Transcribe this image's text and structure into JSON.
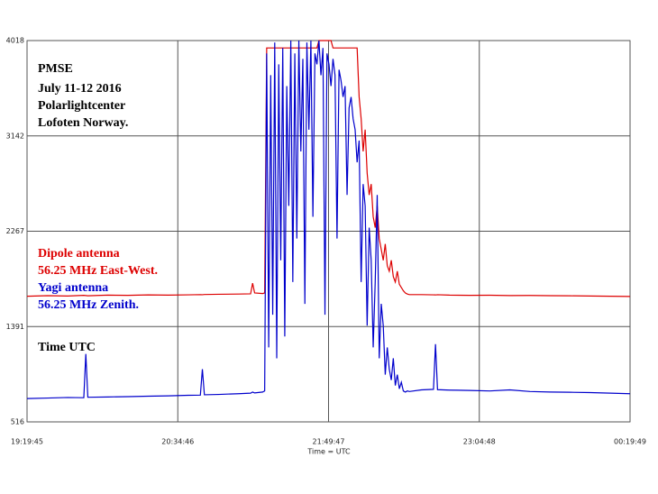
{
  "chart_data": {
    "type": "line",
    "title": "PMSE",
    "annotations": [
      "July 11-12 2016",
      "Polarlightcenter",
      "Lofoten Norway.",
      "Time UTC"
    ],
    "xlabel": "Time = UTC",
    "grid": true,
    "xlim": [
      "19:19:45",
      "00:19:49"
    ],
    "xticks": [
      "19:19:45",
      "20:34:46",
      "21:49:47",
      "23:04:48",
      "00:19:49"
    ],
    "ylim": [
      516,
      4018
    ],
    "yticks": [
      516,
      1391,
      2267,
      3142,
      4018
    ],
    "x": [
      "19:19:45",
      "19:30:00",
      "19:40:00",
      "19:48:00",
      "19:49:00",
      "19:50:00",
      "20:00:00",
      "20:10:00",
      "20:20:00",
      "20:30:00",
      "20:40:00",
      "20:46:00",
      "20:47:00",
      "20:48:00",
      "20:55:00",
      "21:05:00",
      "21:11:00",
      "21:12:00",
      "21:13:00",
      "21:17:00",
      "21:18:00",
      "21:19:00",
      "21:20:00",
      "21:21:00",
      "21:22:00",
      "21:23:00",
      "21:24:00",
      "21:25:00",
      "21:26:00",
      "21:27:00",
      "21:28:00",
      "21:29:00",
      "21:30:00",
      "21:31:00",
      "21:32:00",
      "21:33:00",
      "21:34:00",
      "21:35:00",
      "21:36:00",
      "21:37:00",
      "21:38:00",
      "21:39:00",
      "21:40:00",
      "21:41:00",
      "21:42:00",
      "21:43:00",
      "21:44:00",
      "21:45:00",
      "21:46:00",
      "21:47:00",
      "21:48:00",
      "21:49:00",
      "21:50:00",
      "21:51:00",
      "21:52:00",
      "21:53:00",
      "21:54:00",
      "21:55:00",
      "21:56:00",
      "21:57:00",
      "21:58:00",
      "21:59:00",
      "22:00:00",
      "22:01:00",
      "22:02:00",
      "22:03:00",
      "22:04:00",
      "22:05:00",
      "22:06:00",
      "22:07:00",
      "22:08:00",
      "22:09:00",
      "22:10:00",
      "22:11:00",
      "22:12:00",
      "22:13:00",
      "22:14:00",
      "22:15:00",
      "22:16:00",
      "22:17:00",
      "22:18:00",
      "22:19:00",
      "22:20:00",
      "22:21:00",
      "22:22:00",
      "22:23:00",
      "22:24:00",
      "22:25:00",
      "22:26:00",
      "22:27:00",
      "22:28:00",
      "22:29:00",
      "22:30:00",
      "22:36:00",
      "22:42:00",
      "22:43:00",
      "22:44:00",
      "22:50:00",
      "23:00:00",
      "23:10:00",
      "23:20:00",
      "23:30:00",
      "23:40:00",
      "23:50:00",
      "00:00:00",
      "00:10:00",
      "00:19:49"
    ],
    "series": [
      {
        "name": "Dipole antenna",
        "description": "56.25 MHz East-West.",
        "color": "#dd0000",
        "values": [
          1670,
          1675,
          1672,
          1678,
          1676,
          1674,
          1680,
          1678,
          1682,
          1680,
          1683,
          1685,
          1684,
          1686,
          1688,
          1690,
          1692,
          1790,
          1700,
          1695,
          1700,
          3950,
          3950,
          3950,
          3950,
          3950,
          3950,
          3950,
          3950,
          3950,
          3950,
          3950,
          3950,
          3950,
          3950,
          3950,
          3950,
          3950,
          3950,
          3950,
          3950,
          3950,
          3950,
          3950,
          3950,
          3950,
          3950,
          4018,
          4018,
          4018,
          4018,
          4018,
          4018,
          4018,
          3950,
          3950,
          3950,
          3950,
          3950,
          3950,
          3950,
          3950,
          3950,
          3950,
          3950,
          3950,
          3950,
          3500,
          3300,
          3000,
          3200,
          2800,
          2600,
          2700,
          2400,
          2300,
          2500,
          2200,
          2100,
          2000,
          2150,
          1950,
          1900,
          2000,
          1850,
          1800,
          1900,
          1780,
          1750,
          1720,
          1700,
          1690,
          1685,
          1685,
          1683,
          1682,
          1684,
          1680,
          1678,
          1679,
          1676,
          1677,
          1675,
          1674,
          1672,
          1670,
          1668
        ]
      },
      {
        "name": "Yagi antenna",
        "description": "56.25 MHz Zenith.",
        "color": "#0000cc",
        "values": [
          730,
          735,
          740,
          738,
          1140,
          742,
          745,
          748,
          752,
          755,
          760,
          762,
          1000,
          765,
          768,
          775,
          780,
          790,
          782,
          790,
          800,
          3900,
          1200,
          3700,
          1500,
          4000,
          1100,
          3800,
          2000,
          3950,
          1300,
          3600,
          2500,
          4018,
          1800,
          3900,
          2200,
          4018,
          3000,
          3850,
          1600,
          4000,
          3200,
          4018,
          2400,
          3900,
          3800,
          4018,
          3700,
          3950,
          1500,
          3900,
          3800,
          3600,
          3850,
          3700,
          2200,
          3750,
          3650,
          3500,
          3600,
          2600,
          3400,
          3500,
          3300,
          3200,
          2900,
          3100,
          1800,
          2700,
          2500,
          1400,
          2300,
          2000,
          1200,
          1800,
          2600,
          1100,
          1600,
          1400,
          950,
          1200,
          1000,
          900,
          1100,
          850,
          950,
          820,
          880,
          800,
          790,
          800,
          795,
          810,
          815,
          1230,
          812,
          808,
          805,
          800,
          810,
          795,
          790,
          788,
          785,
          780,
          775
        ]
      }
    ]
  }
}
